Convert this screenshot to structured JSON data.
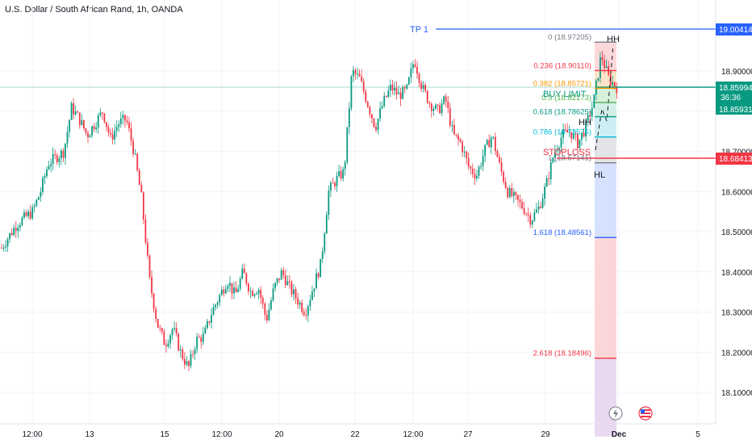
{
  "header": {
    "title": "U.S. Dollar / South African Rand, 1h, OANDA"
  },
  "colors": {
    "up": "#089981",
    "down": "#f23645",
    "tp": "#2962ff",
    "stop": "#f23645",
    "buy": "#089981",
    "grid": "#f0f3fa",
    "axis_text": "#131722"
  },
  "price_axis": {
    "ticks": [
      "18.90000",
      "18.80000",
      "18.70000",
      "18.60000",
      "18.50000",
      "18.40000",
      "18.30000",
      "18.20000",
      "18.10000"
    ]
  },
  "time_axis": {
    "ticks": [
      "12:00",
      "13",
      "15",
      "12:00",
      "20",
      "22",
      "12:00",
      "27",
      "29",
      "Dec",
      "5"
    ]
  },
  "labels": {
    "tp1": "TP 1",
    "buy_limit": "BUY LIMIT",
    "stoploss": "STOPLOSS",
    "hh_top": "HH",
    "hh_mid": "HH",
    "hl": "HL"
  },
  "price_tags": {
    "tp": "19.00414",
    "current": "18.85994",
    "countdown": "36:36",
    "buy": "18.85931",
    "stop": "18.68413"
  },
  "fib_levels": [
    {
      "label": "0 (18.97205)",
      "color": "#787b86"
    },
    {
      "label": "0.236 (18.90110)",
      "color": "#f23645"
    },
    {
      "label": "0.382 (18.85721)",
      "color": "#ff9800"
    },
    {
      "label": "0.5 (18.82173)",
      "color": "#4caf50"
    },
    {
      "label": "0.618 (18.78625)",
      "color": "#089981"
    },
    {
      "label": "0.786 (18.73575)",
      "color": "#00bcd4"
    },
    {
      "label": "1 (18.67141)",
      "color": "#787b86"
    },
    {
      "label": "1.618 (18.48561)",
      "color": "#2962ff"
    },
    {
      "label": "2.618 (18.18496)",
      "color": "#f23645"
    }
  ],
  "chart_data": {
    "type": "candlestick",
    "symbol": "USD/ZAR",
    "interval": "1h",
    "ylim": [
      18.03,
      19.02
    ],
    "x_categories": [
      "12:00",
      "13",
      "15",
      "12:00",
      "20",
      "22",
      "12:00",
      "27",
      "29",
      "Dec",
      "5"
    ],
    "close_path": [
      [
        0,
        18.46
      ],
      [
        2,
        18.52
      ],
      [
        4,
        18.55
      ],
      [
        5,
        18.6
      ],
      [
        6,
        18.67
      ],
      [
        8,
        18.7
      ],
      [
        9,
        18.81
      ],
      [
        10,
        18.78
      ],
      [
        11,
        18.74
      ],
      [
        12,
        18.77
      ],
      [
        13,
        18.8
      ],
      [
        14,
        18.73
      ],
      [
        15,
        18.77
      ],
      [
        16,
        18.78
      ],
      [
        17,
        18.7
      ],
      [
        18,
        18.58
      ],
      [
        19,
        18.38
      ],
      [
        20,
        18.27
      ],
      [
        21,
        18.22
      ],
      [
        22,
        18.26
      ],
      [
        23,
        18.2
      ],
      [
        24,
        18.16
      ],
      [
        25,
        18.23
      ],
      [
        26,
        18.24
      ],
      [
        27,
        18.3
      ],
      [
        28,
        18.34
      ],
      [
        29,
        18.38
      ],
      [
        30,
        18.34
      ],
      [
        31,
        18.4
      ],
      [
        32,
        18.35
      ],
      [
        33,
        18.36
      ],
      [
        34,
        18.28
      ],
      [
        35,
        18.36
      ],
      [
        36,
        18.4
      ],
      [
        37,
        18.36
      ],
      [
        38,
        18.33
      ],
      [
        39,
        18.3
      ],
      [
        40,
        18.36
      ],
      [
        41,
        18.42
      ],
      [
        42,
        18.6
      ],
      [
        43,
        18.63
      ],
      [
        44,
        18.65
      ],
      [
        45,
        18.9
      ],
      [
        46,
        18.88
      ],
      [
        47,
        18.82
      ],
      [
        48,
        18.76
      ],
      [
        49,
        18.82
      ],
      [
        50,
        18.86
      ],
      [
        51,
        18.84
      ],
      [
        52,
        18.85
      ],
      [
        53,
        18.93
      ],
      [
        54,
        18.86
      ],
      [
        55,
        18.82
      ],
      [
        56,
        18.8
      ],
      [
        57,
        18.83
      ],
      [
        58,
        18.74
      ],
      [
        59,
        18.72
      ],
      [
        60,
        18.66
      ],
      [
        61,
        18.64
      ],
      [
        62,
        18.7
      ],
      [
        63,
        18.74
      ],
      [
        64,
        18.66
      ],
      [
        65,
        18.6
      ],
      [
        66,
        18.58
      ],
      [
        67,
        18.56
      ],
      [
        68,
        18.53
      ],
      [
        69,
        18.56
      ],
      [
        70,
        18.62
      ],
      [
        71,
        18.7
      ],
      [
        72,
        18.74
      ],
      [
        73,
        18.75
      ],
      [
        74,
        18.72
      ],
      [
        75,
        18.76
      ],
      [
        76,
        18.82
      ],
      [
        77,
        18.94
      ],
      [
        78,
        18.88
      ],
      [
        79,
        18.86
      ]
    ],
    "horizontal_levels": [
      {
        "name": "TP 1",
        "value": 19.00414
      },
      {
        "name": "BUY LIMIT",
        "value": 18.85931
      },
      {
        "name": "STOPLOSS",
        "value": 18.68413
      }
    ],
    "fibonacci": [
      {
        "ratio": 0,
        "value": 18.97205
      },
      {
        "ratio": 0.236,
        "value": 18.9011
      },
      {
        "ratio": 0.382,
        "value": 18.85721
      },
      {
        "ratio": 0.5,
        "value": 18.82173
      },
      {
        "ratio": 0.618,
        "value": 18.78625
      },
      {
        "ratio": 0.786,
        "value": 18.73575
      },
      {
        "ratio": 1,
        "value": 18.67141
      },
      {
        "ratio": 1.618,
        "value": 18.48561
      },
      {
        "ratio": 2.618,
        "value": 18.18496
      }
    ],
    "last_price": 18.85994
  }
}
